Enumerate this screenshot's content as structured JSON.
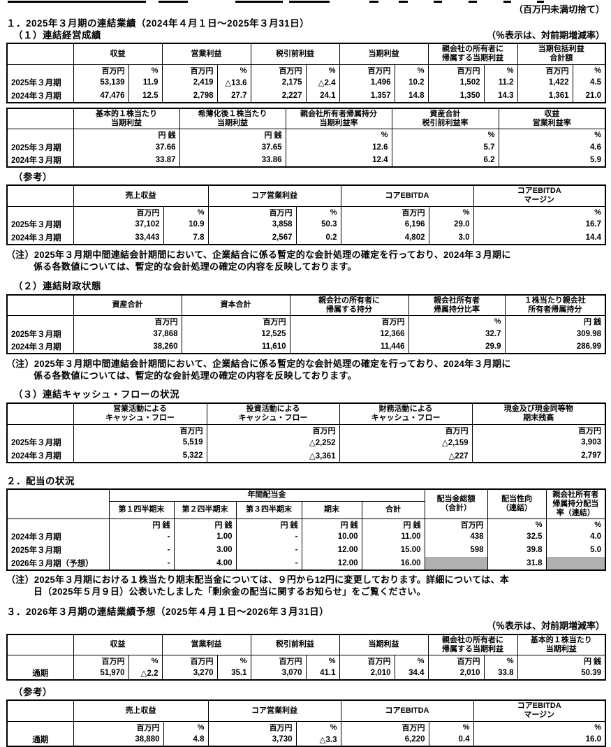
{
  "doc": {
    "rounding_note": "（百万円未満切捨て）",
    "pct_note": "（％表示は、対前期増減率）",
    "section1_title": "１．2025年３月期の連結業績（2024年４月１日～2025年３月31日）",
    "section1_sub1": "（１）連結経営成績",
    "section1_sub2": "（２）連結財政状態",
    "section1_sub3": "（３）連結キャッシュ・フローの状況",
    "section2_title": "２．配当の状況",
    "section3_title": "３．2026年３月期の連結業績予想（2025年４月１日～2026年３月31日）",
    "reference_label": "（参考）",
    "note_accounting": "（注）2025年３月期中間連結会計期間において、企業結合に係る暫定的な会計処理の確定を行っており、2024年３月期に\n係る各数値については、暫定的な会計処理の確定の内容を反映しております。",
    "note_dividend": "（注）2025年３月期における１株当たり期末配当金については、９円から12円に変更しております。詳細については、本\n日（2025年５月９日）公表いたしました「剰余金の配当に関するお知らせ」をご覧ください。"
  },
  "colors": {
    "cell_gray": "#b0b0b0",
    "border": "#000000",
    "text": "#000000",
    "background": "#ffffff"
  },
  "tables": {
    "t1": {
      "widths": [
        95,
        79,
        48,
        79,
        48,
        79,
        48,
        79,
        48,
        80,
        48,
        79,
        47
      ],
      "head": [
        [
          {
            "t": ""
          },
          {
            "t": "収益",
            "cs": 2
          },
          {
            "t": "営業利益",
            "cs": 2
          },
          {
            "t": "税引前利益",
            "cs": 2
          },
          {
            "t": "当期利益",
            "cs": 2
          },
          {
            "t": "親会社の所有者に\n帰属する当期利益",
            "cs": 2
          },
          {
            "t": "当期包括利益\n合計額",
            "cs": 2
          }
        ]
      ],
      "units": [
        "",
        "百万円",
        "%",
        "百万円",
        "%",
        "百万円",
        "%",
        "百万円",
        "%",
        "百万円",
        "%",
        "百万円",
        "%"
      ],
      "rows": [
        [
          "2025年３月期",
          "53,139",
          "11.9",
          "2,419",
          "△13.6",
          "2,175",
          "△2.4",
          "1,496",
          "10.2",
          "1,502",
          "11.2",
          "1,422",
          "4.5"
        ],
        [
          "2024年３月期",
          "47,476",
          "12.5",
          "2,798",
          "27.7",
          "2,227",
          "24.1",
          "1,357",
          "14.8",
          "1,350",
          "14.3",
          "1,361",
          "21.0"
        ]
      ]
    },
    "t2": {
      "widths": [
        95,
        152,
        152,
        152,
        153,
        153
      ],
      "head": [
        [
          {
            "t": ""
          },
          {
            "t": "基本的１株当たり\n当期利益"
          },
          {
            "t": "希薄化後１株当たり\n当期利益"
          },
          {
            "t": "親会社所有者帰属持分\n当期利益率"
          },
          {
            "t": "資産合計\n税引前利益率"
          },
          {
            "t": "収益\n営業利益率"
          }
        ]
      ],
      "units": [
        "",
        "円 銭",
        "円 銭",
        "%",
        "%",
        "%"
      ],
      "rows": [
        [
          "2025年３月期",
          "37.66",
          "37.65",
          "12.6",
          "5.7",
          "4.6"
        ],
        [
          "2024年３月期",
          "33.87",
          "33.86",
          "12.4",
          "6.2",
          "5.9"
        ]
      ]
    },
    "t3": {
      "widths": [
        95,
        129,
        64,
        126,
        64,
        126,
        64,
        189
      ],
      "head": [
        [
          {
            "t": ""
          },
          {
            "t": "売上収益",
            "cs": 2
          },
          {
            "t": "コア営業利益",
            "cs": 2
          },
          {
            "t": "コアEBITDA",
            "cs": 2
          },
          {
            "t": "コアEBITDA\nマージン"
          }
        ]
      ],
      "units": [
        "",
        "百万円",
        "%",
        "百万円",
        "%",
        "百万円",
        "%",
        "%"
      ],
      "rows": [
        [
          "2025年３月期",
          "37,102",
          "10.9",
          "3,858",
          "50.3",
          "6,196",
          "29.0",
          "16.7"
        ],
        [
          "2024年３月期",
          "33,443",
          "7.8",
          "2,567",
          "0.2",
          "4,802",
          "3.0",
          "14.4"
        ]
      ]
    },
    "t4": {
      "widths": [
        95,
        155,
        155,
        170,
        138,
        144
      ],
      "head": [
        [
          {
            "t": ""
          },
          {
            "t": "資産合計"
          },
          {
            "t": "資本合計"
          },
          {
            "t": "親会社の所有者に\n帰属する持分"
          },
          {
            "t": "親会社所有者\n帰属持分比率"
          },
          {
            "t": "１株当たり親会社\n所有者帰属持分"
          }
        ]
      ],
      "units": [
        "",
        "百万円",
        "百万円",
        "百万円",
        "%",
        "円 銭"
      ],
      "rows": [
        [
          "2025年３月期",
          "37,868",
          "12,525",
          "12,366",
          "32.7",
          "309.98"
        ],
        [
          "2024年３月期",
          "38,260",
          "11,610",
          "11,446",
          "29.9",
          "286.99"
        ]
      ]
    },
    "t5": {
      "widths": [
        95,
        191,
        190,
        190,
        191
      ],
      "head": [
        [
          {
            "t": ""
          },
          {
            "t": "営業活動による\nキャッシュ・フロー"
          },
          {
            "t": "投資活動による\nキャッシュ・フロー"
          },
          {
            "t": "財務活動による\nキャッシュ・フロー"
          },
          {
            "t": "現金及び現金同等物\n期末残高"
          }
        ]
      ],
      "units": [
        "",
        "百万円",
        "百万円",
        "百万円",
        "百万円"
      ],
      "rows": [
        [
          "2025年３月期",
          "5,519",
          "△2,252",
          "△2,159",
          "3,903"
        ],
        [
          "2024年３月期",
          "5,322",
          "△3,361",
          "△227",
          "2,797"
        ]
      ]
    },
    "t6": {
      "widths": [
        146,
        93,
        89,
        94,
        86,
        90,
        90,
        84,
        85
      ],
      "headHeights": [
        18,
        24
      ],
      "head": [
        [
          {
            "t": "",
            "rs": 2
          },
          {
            "t": "年間配当金",
            "cs": 5
          },
          {
            "t": "配当金総額\n（合計）",
            "rs": 2
          },
          {
            "t": "配当性向\n（連結）",
            "rs": 2
          },
          {
            "t": "親会社所有者\n帰属持分配当\n率（連結）",
            "rs": 2
          }
        ],
        [
          {
            "t": "第１四半期末"
          },
          {
            "t": "第２四半期末"
          },
          {
            "t": "第３四半期末"
          },
          {
            "t": "期末"
          },
          {
            "t": "合計"
          }
        ]
      ],
      "units": [
        "",
        "円 銭",
        "円 銭",
        "円 銭",
        "円 銭",
        "円 銭",
        "百万円",
        "%",
        "%"
      ],
      "rows": [
        [
          "2024年３月期",
          "-",
          "1.00",
          "-",
          "10.00",
          "11.00",
          "438",
          "32.5",
          "4.0"
        ],
        [
          "2025年３月期",
          "-",
          "3.00",
          "-",
          "12.00",
          "15.00",
          "598",
          "39.8",
          "5.0"
        ],
        [
          "2026年３月期（予想）",
          "-",
          "4.00",
          "-",
          "12.00",
          "16.00",
          "",
          "31.8",
          ""
        ]
      ],
      "gray": [
        [
          2,
          6
        ],
        [
          2,
          8
        ]
      ]
    },
    "t7": {
      "widths": [
        95,
        79,
        48,
        79,
        48,
        79,
        48,
        79,
        48,
        80,
        48,
        126
      ],
      "labelAlign": "center",
      "head": [
        [
          {
            "t": ""
          },
          {
            "t": "収益",
            "cs": 2
          },
          {
            "t": "営業利益",
            "cs": 2
          },
          {
            "t": "税引前利益",
            "cs": 2
          },
          {
            "t": "当期利益",
            "cs": 2
          },
          {
            "t": "親会社の所有者に\n帰属する当期利益",
            "cs": 2
          },
          {
            "t": "基本的１株当たり\n当期利益"
          }
        ]
      ],
      "units": [
        "",
        "百万円",
        "%",
        "百万円",
        "%",
        "百万円",
        "%",
        "百万円",
        "%",
        "百万円",
        "%",
        "円 銭"
      ],
      "rows": [
        [
          "通期",
          "51,970",
          "△2.2",
          "3,270",
          "35.1",
          "3,070",
          "41.1",
          "2,010",
          "34.4",
          "2,010",
          "33.8",
          "50.39"
        ]
      ]
    },
    "t8": {
      "widths": [
        95,
        129,
        64,
        126,
        64,
        126,
        64,
        189
      ],
      "labelAlign": "center",
      "head": [
        [
          {
            "t": ""
          },
          {
            "t": "売上収益",
            "cs": 2
          },
          {
            "t": "コア営業利益",
            "cs": 2
          },
          {
            "t": "コアEBITDA",
            "cs": 2
          },
          {
            "t": "コアEBITDA\nマージン"
          }
        ]
      ],
      "units": [
        "",
        "百万円",
        "%",
        "百万円",
        "%",
        "百万円",
        "%",
        "%"
      ],
      "rows": [
        [
          "通期",
          "38,880",
          "4.8",
          "3,730",
          "△3.3",
          "6,220",
          "0.4",
          "16.0"
        ]
      ]
    }
  }
}
